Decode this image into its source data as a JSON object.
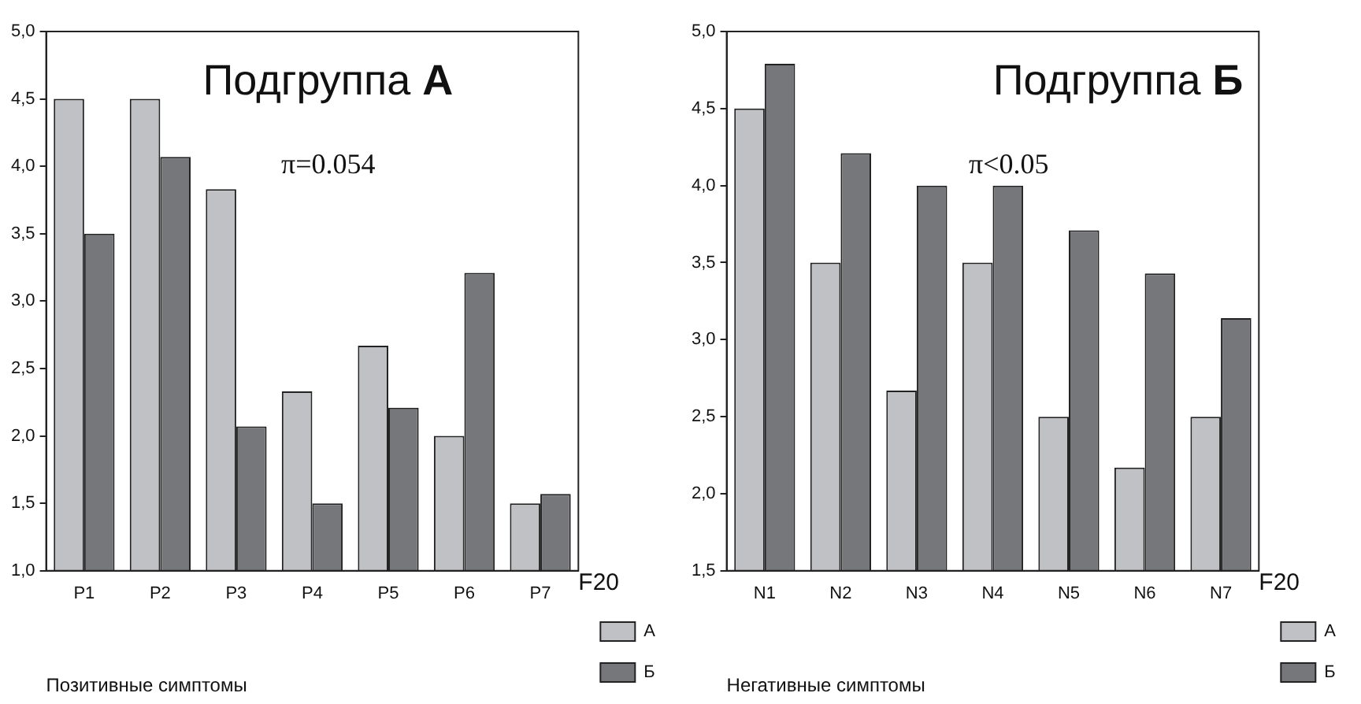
{
  "chart_data": [
    {
      "type": "bar",
      "title": "Подгруппа А",
      "xlabel": "Позитивные симптомы",
      "legend_title": "F20",
      "categories": [
        "P1",
        "P2",
        "P3",
        "P4",
        "P5",
        "P6",
        "P7"
      ],
      "series": [
        {
          "name": "А",
          "color": "#c0c1c4",
          "values": [
            4.5,
            4.5,
            3.83,
            2.33,
            2.67,
            2.0,
            1.5
          ]
        },
        {
          "name": "Б",
          "color": "#76777b",
          "values": [
            3.5,
            4.07,
            2.07,
            1.5,
            2.21,
            3.21,
            1.57
          ]
        }
      ],
      "ylim": [
        1.0,
        5.0
      ],
      "yticks": [
        {
          "value": 1.0,
          "label": "1,0"
        },
        {
          "value": 1.5,
          "label": "1,5"
        },
        {
          "value": 2.0,
          "label": "2,0"
        },
        {
          "value": 2.5,
          "label": "2,5"
        },
        {
          "value": 3.0,
          "label": "3,0"
        },
        {
          "value": 3.5,
          "label": "3,5"
        },
        {
          "value": 4.0,
          "label": "4,0"
        },
        {
          "value": 4.5,
          "label": "4,5"
        },
        {
          "value": 5.0,
          "label": "5,0"
        }
      ],
      "annotations": [
        "π=0.054"
      ],
      "grid": false,
      "legend": "right"
    },
    {
      "type": "bar",
      "title": "Подгруппа Б",
      "xlabel": "Негативные симптомы",
      "legend_title": "F20",
      "categories": [
        "N1",
        "N2",
        "N3",
        "N4",
        "N5",
        "N6",
        "N7"
      ],
      "series": [
        {
          "name": "А",
          "color": "#c0c1c4",
          "values": [
            4.5,
            3.5,
            2.67,
            3.5,
            2.5,
            2.17,
            2.5
          ]
        },
        {
          "name": "Б",
          "color": "#76777b",
          "values": [
            4.79,
            4.21,
            4.0,
            4.0,
            3.71,
            3.43,
            3.14
          ]
        }
      ],
      "ylim": [
        1.5,
        5.0
      ],
      "yticks": [
        {
          "value": 1.5,
          "label": "1,5"
        },
        {
          "value": 2.0,
          "label": "2,0"
        },
        {
          "value": 2.5,
          "label": "2,5"
        },
        {
          "value": 3.0,
          "label": "3,0"
        },
        {
          "value": 3.5,
          "label": "3,5"
        },
        {
          "value": 4.0,
          "label": "4,0"
        },
        {
          "value": 4.5,
          "label": "4,5"
        },
        {
          "value": 5.0,
          "label": "5,0"
        }
      ],
      "annotations": [
        "π<0.05"
      ],
      "grid": false,
      "legend": "right"
    }
  ]
}
